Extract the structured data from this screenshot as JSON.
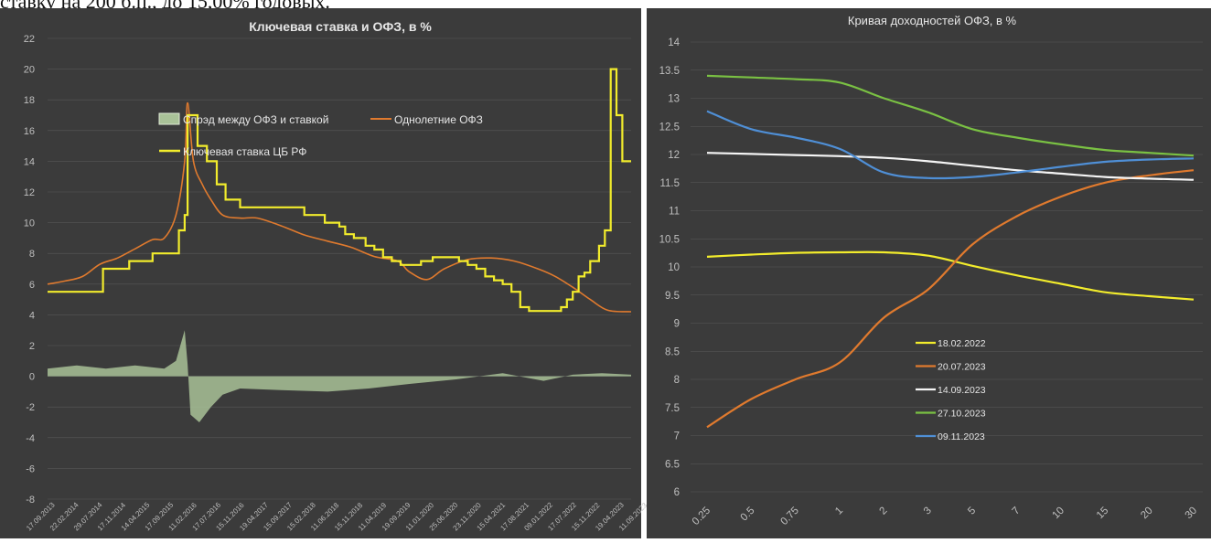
{
  "page_caption": "ставку на 200 б.п., до 15,00% годовых.",
  "colors": {
    "panel_bg": "#3b3b3b",
    "grid": "#595959",
    "axis_text": "#bfbfbf",
    "spread": "#a9c298",
    "ofz_1y": "#e07a2e",
    "key_rate": "#f2ec2c"
  },
  "chart_data": [
    {
      "type": "line",
      "title": "Ключевая ставка и ОФЗ, в %",
      "ylim": [
        -8,
        22
      ],
      "yticks": [
        "-8",
        "-6",
        "-4",
        "-2",
        "0",
        "2",
        "4",
        "6",
        "8",
        "10",
        "12",
        "14",
        "16",
        "18",
        "20",
        "22"
      ],
      "x_tick_labels": [
        "17.09.2013",
        "22.02.2014",
        "29.07.2014",
        "17.11.2014",
        "14.04.2015",
        "17.09.2015",
        "11.02.2016",
        "17.07.2016",
        "15.11.2016",
        "19.04.2017",
        "15.09.2017",
        "15.02.2018",
        "11.06.2018",
        "15.11.2018",
        "11.04.2019",
        "19.09.2019",
        "11.01.2020",
        "25.06.2020",
        "23.11.2020",
        "15.04.2021",
        "17.08.2021",
        "09.01.2022",
        "17.07.2022",
        "15.11.2022",
        "19.04.2023",
        "11.09.2023"
      ],
      "legend": [
        "Спрэд между ОФЗ и ставкой",
        "Однолетние ОФЗ",
        "Ключевая ставка ЦБ РФ"
      ],
      "key_rate_steps": [
        [
          0,
          5.5
        ],
        [
          0.095,
          7
        ],
        [
          0.14,
          7.5
        ],
        [
          0.18,
          8
        ],
        [
          0.225,
          9.5
        ],
        [
          0.235,
          10.5
        ],
        [
          0.24,
          17
        ],
        [
          0.257,
          15
        ],
        [
          0.273,
          14
        ],
        [
          0.29,
          12.5
        ],
        [
          0.305,
          11.5
        ],
        [
          0.33,
          11
        ],
        [
          0.44,
          10.5
        ],
        [
          0.475,
          10
        ],
        [
          0.5,
          9.75
        ],
        [
          0.51,
          9.25
        ],
        [
          0.525,
          9
        ],
        [
          0.545,
          8.5
        ],
        [
          0.56,
          8.25
        ],
        [
          0.575,
          7.75
        ],
        [
          0.59,
          7.5
        ],
        [
          0.605,
          7.25
        ],
        [
          0.64,
          7.5
        ],
        [
          0.66,
          7.75
        ],
        [
          0.705,
          7.5
        ],
        [
          0.72,
          7.25
        ],
        [
          0.735,
          7
        ],
        [
          0.75,
          6.5
        ],
        [
          0.765,
          6.25
        ],
        [
          0.78,
          6
        ],
        [
          0.795,
          5.5
        ],
        [
          0.81,
          4.5
        ],
        [
          0.825,
          4.25
        ],
        [
          0.88,
          4.5
        ],
        [
          0.89,
          5
        ],
        [
          0.9,
          5.5
        ],
        [
          0.91,
          6.5
        ],
        [
          0.92,
          6.75
        ],
        [
          0.93,
          7.5
        ],
        [
          0.945,
          8.5
        ],
        [
          0.955,
          9.5
        ],
        [
          0.965,
          20
        ],
        [
          0.975,
          17
        ],
        [
          0.985,
          14
        ]
      ],
      "series": [
        {
          "name": "Однолетние ОФЗ",
          "points": [
            [
              0,
              6
            ],
            [
              0.03,
              6.2
            ],
            [
              0.06,
              6.5
            ],
            [
              0.09,
              7.3
            ],
            [
              0.12,
              7.7
            ],
            [
              0.15,
              8.3
            ],
            [
              0.18,
              8.9
            ],
            [
              0.2,
              9
            ],
            [
              0.22,
              10.5
            ],
            [
              0.235,
              14
            ],
            [
              0.24,
              17.8
            ],
            [
              0.25,
              14
            ],
            [
              0.265,
              12.5
            ],
            [
              0.28,
              11.5
            ],
            [
              0.3,
              10.5
            ],
            [
              0.33,
              10.3
            ],
            [
              0.36,
              10.3
            ],
            [
              0.4,
              9.8
            ],
            [
              0.44,
              9.2
            ],
            [
              0.48,
              8.8
            ],
            [
              0.52,
              8.4
            ],
            [
              0.56,
              7.8
            ],
            [
              0.6,
              7.5
            ],
            [
              0.62,
              6.8
            ],
            [
              0.65,
              6.3
            ],
            [
              0.68,
              7
            ],
            [
              0.72,
              7.6
            ],
            [
              0.76,
              7.7
            ],
            [
              0.8,
              7.5
            ],
            [
              0.84,
              7
            ],
            [
              0.87,
              6.5
            ],
            [
              0.9,
              5.8
            ],
            [
              0.93,
              5
            ],
            [
              0.96,
              4.3
            ],
            [
              1,
              4.2
            ]
          ]
        },
        {
          "name": "Спрэд между ОФЗ и ставкой",
          "points": [
            [
              0,
              0.5
            ],
            [
              0.05,
              0.7
            ],
            [
              0.1,
              0.5
            ],
            [
              0.15,
              0.7
            ],
            [
              0.2,
              0.5
            ],
            [
              0.22,
              1
            ],
            [
              0.235,
              3
            ],
            [
              0.24,
              0.8
            ],
            [
              0.245,
              -2.5
            ],
            [
              0.26,
              -3
            ],
            [
              0.28,
              -2
            ],
            [
              0.3,
              -1.2
            ],
            [
              0.33,
              -0.8
            ],
            [
              0.4,
              -0.9
            ],
            [
              0.48,
              -1
            ],
            [
              0.55,
              -0.8
            ],
            [
              0.62,
              -0.5
            ],
            [
              0.7,
              -0.2
            ],
            [
              0.78,
              0.2
            ],
            [
              0.85,
              -0.3
            ],
            [
              0.9,
              0.1
            ],
            [
              0.95,
              0.2
            ],
            [
              1,
              0.1
            ]
          ]
        }
      ]
    },
    {
      "type": "line",
      "title": "Кривая доходностей ОФЗ, в %",
      "categories": [
        "0.25",
        "0.5",
        "0.75",
        "1",
        "2",
        "3",
        "5",
        "7",
        "10",
        "15",
        "20",
        "30"
      ],
      "ylim": [
        6,
        14
      ],
      "yticks": [
        "6",
        "6.5",
        "7",
        "7.5",
        "8",
        "8.5",
        "9",
        "9.5",
        "10",
        "10.5",
        "11",
        "11.5",
        "12",
        "12.5",
        "13",
        "13.5",
        "14"
      ],
      "series": [
        {
          "name": "18.02.2022",
          "color": "#f2ec2c",
          "values": [
            10.18,
            10.22,
            10.25,
            10.26,
            10.26,
            10.2,
            10.02,
            9.85,
            9.7,
            9.55,
            9.48,
            9.42
          ]
        },
        {
          "name": "20.07.2023",
          "color": "#e07a2e",
          "values": [
            7.15,
            7.65,
            8.0,
            8.3,
            9.1,
            9.6,
            10.4,
            10.9,
            11.25,
            11.5,
            11.63,
            11.72
          ]
        },
        {
          "name": "14.09.2023",
          "color": "#f5f5f5",
          "values": [
            12.03,
            12.01,
            11.99,
            11.97,
            11.94,
            11.88,
            11.8,
            11.72,
            11.66,
            11.6,
            11.57,
            11.55
          ]
        },
        {
          "name": "27.10.2023",
          "color": "#7ac143",
          "values": [
            13.4,
            13.37,
            13.34,
            13.28,
            13.0,
            12.75,
            12.45,
            12.3,
            12.18,
            12.08,
            12.03,
            11.98
          ]
        },
        {
          "name": "09.11.2023",
          "color": "#4f8fd6",
          "values": [
            12.77,
            12.45,
            12.3,
            12.1,
            11.68,
            11.58,
            11.6,
            11.68,
            11.78,
            11.87,
            11.91,
            11.93
          ]
        }
      ]
    }
  ]
}
